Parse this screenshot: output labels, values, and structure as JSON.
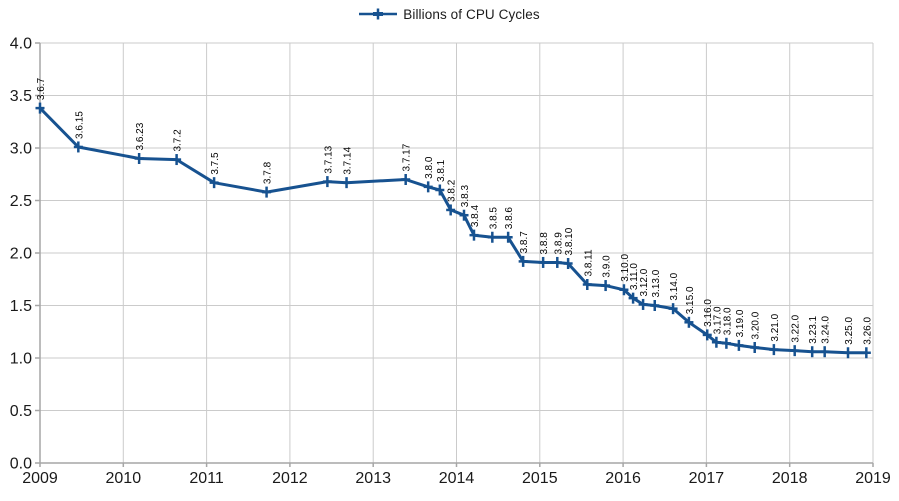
{
  "chart_data": {
    "type": "line",
    "title": "",
    "legend": "Billions of CPU Cycles",
    "legend_position": "top-center",
    "xlabel": "",
    "ylabel": "",
    "xlim": [
      2009,
      2019
    ],
    "ylim": [
      0.0,
      4.0
    ],
    "grid": true,
    "marker": "plus",
    "x_tick_values": [
      2009,
      2010,
      2011,
      2012,
      2013,
      2014,
      2015,
      2016,
      2017,
      2018,
      2019
    ],
    "x_tick_labels": [
      "2009",
      "2010",
      "2011",
      "2012",
      "2013",
      "2014",
      "2015",
      "2016",
      "2017",
      "2018",
      "2019"
    ],
    "y_tick_values": [
      0.0,
      0.5,
      1.0,
      1.5,
      2.0,
      2.5,
      3.0,
      3.5,
      4.0
    ],
    "y_tick_labels": [
      "0.0",
      "0.5",
      "1.0",
      "1.5",
      "2.0",
      "2.5",
      "3.0",
      "3.5",
      "4.0"
    ],
    "colors": {
      "line": "#175290",
      "grid": "#cbcbcb",
      "axis": "#a6a6a6",
      "tick_text": "#1a1a1a",
      "point_label_text": "#000000",
      "background": "#ffffff"
    },
    "series": [
      {
        "name": "Billions of CPU Cycles",
        "points": [
          {
            "label": "3.6.7",
            "x": 2009.0,
            "y": 3.38
          },
          {
            "label": "3.6.15",
            "x": 2009.46,
            "y": 3.01
          },
          {
            "label": "3.6.23",
            "x": 2010.19,
            "y": 2.9
          },
          {
            "label": "3.7.2",
            "x": 2010.64,
            "y": 2.89
          },
          {
            "label": "3.7.5",
            "x": 2011.09,
            "y": 2.67
          },
          {
            "label": "3.7.8",
            "x": 2011.72,
            "y": 2.58
          },
          {
            "label": "3.7.13",
            "x": 2012.45,
            "y": 2.68
          },
          {
            "label": "3.7.14",
            "x": 2012.68,
            "y": 2.67
          },
          {
            "label": "3.7.17",
            "x": 2013.39,
            "y": 2.7
          },
          {
            "label": "3.8.0",
            "x": 2013.66,
            "y": 2.63
          },
          {
            "label": "3.8.1",
            "x": 2013.8,
            "y": 2.6
          },
          {
            "label": "3.8.2",
            "x": 2013.93,
            "y": 2.41
          },
          {
            "label": "3.8.3",
            "x": 2014.09,
            "y": 2.36
          },
          {
            "label": "3.8.4",
            "x": 2014.21,
            "y": 2.17
          },
          {
            "label": "3.8.5",
            "x": 2014.43,
            "y": 2.15
          },
          {
            "label": "3.8.6",
            "x": 2014.62,
            "y": 2.15
          },
          {
            "label": "3.8.7",
            "x": 2014.8,
            "y": 1.92
          },
          {
            "label": "3.8.8",
            "x": 2015.04,
            "y": 1.91
          },
          {
            "label": "3.8.9",
            "x": 2015.21,
            "y": 1.91
          },
          {
            "label": "3.8.10",
            "x": 2015.34,
            "y": 1.9
          },
          {
            "label": "3.8.11",
            "x": 2015.57,
            "y": 1.7
          },
          {
            "label": "3.9.0",
            "x": 2015.79,
            "y": 1.69
          },
          {
            "label": "3.10.0",
            "x": 2016.01,
            "y": 1.65
          },
          {
            "label": "3.11.0",
            "x": 2016.12,
            "y": 1.57
          },
          {
            "label": "3.12.0",
            "x": 2016.24,
            "y": 1.51
          },
          {
            "label": "3.13.0",
            "x": 2016.38,
            "y": 1.5
          },
          {
            "label": "3.14.0",
            "x": 2016.6,
            "y": 1.47
          },
          {
            "label": "3.15.0",
            "x": 2016.79,
            "y": 1.34
          },
          {
            "label": "3.16.0",
            "x": 2017.01,
            "y": 1.22
          },
          {
            "label": "3.17.0",
            "x": 2017.12,
            "y": 1.15
          },
          {
            "label": "3.18.0",
            "x": 2017.24,
            "y": 1.14
          },
          {
            "label": "3.19.0",
            "x": 2017.39,
            "y": 1.12
          },
          {
            "label": "3.20.0",
            "x": 2017.58,
            "y": 1.1
          },
          {
            "label": "3.21.0",
            "x": 2017.81,
            "y": 1.08
          },
          {
            "label": "3.22.0",
            "x": 2018.06,
            "y": 1.07
          },
          {
            "label": "3.23.1",
            "x": 2018.27,
            "y": 1.06
          },
          {
            "label": "3.24.0",
            "x": 2018.42,
            "y": 1.06
          },
          {
            "label": "3.25.0",
            "x": 2018.7,
            "y": 1.05
          },
          {
            "label": "3.26.0",
            "x": 2018.92,
            "y": 1.05
          }
        ]
      }
    ]
  }
}
